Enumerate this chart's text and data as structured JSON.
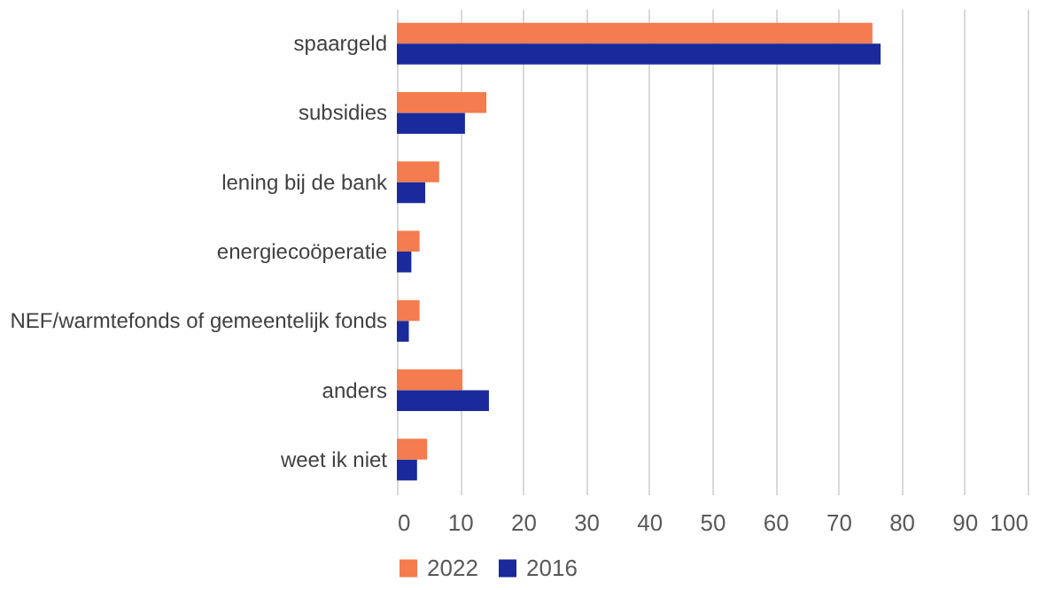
{
  "chart_data": {
    "type": "bar",
    "orientation": "horizontal",
    "categories": [
      "spaargeld",
      "subsidies",
      "lening bij de bank",
      "energiecoöperatie",
      "NEF/warmtefonds of gemeentelijk fonds",
      "anders",
      "weet ik niet"
    ],
    "series": [
      {
        "name": "2022",
        "color": "#f47c4f",
        "values": [
          75.4,
          14.2,
          6.7,
          3.6,
          3.6,
          10.4,
          4.8
        ]
      },
      {
        "name": "2016",
        "color": "#1a2a9c",
        "values": [
          76.7,
          10.8,
          4.5,
          2.3,
          1.9,
          14.6,
          3.2
        ]
      }
    ],
    "xlim": [
      0,
      100
    ],
    "xticks": [
      0,
      10,
      20,
      30,
      40,
      50,
      60,
      70,
      80,
      90,
      100
    ],
    "grid": "x",
    "legend": "bottom"
  }
}
